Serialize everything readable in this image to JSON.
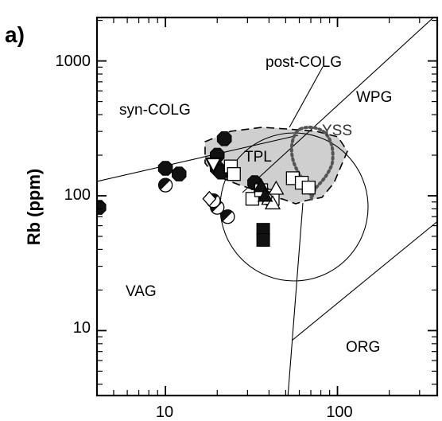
{
  "chart_data": {
    "type": "scatter",
    "panel_label": "a)",
    "xlabel": "",
    "ylabel": "Rb (ppm)",
    "xscale": "log",
    "yscale": "log",
    "xlim": [
      4,
      380
    ],
    "ylim": [
      3.3,
      2100
    ],
    "x_ticks": [
      10,
      100
    ],
    "y_ticks": [
      10,
      100,
      1000
    ],
    "grid": false,
    "regions": [
      "syn-COLG",
      "post-COLG",
      "WPG",
      "YSS",
      "TPL",
      "VAG",
      "ORG"
    ],
    "series": [
      {
        "marker": "filled-octagon",
        "points": [
          [
            4.1,
            82
          ],
          [
            10,
            160
          ],
          [
            12,
            145
          ],
          [
            22,
            265
          ],
          [
            20,
            200
          ],
          [
            20,
            160
          ],
          [
            21,
            150
          ],
          [
            33,
            125
          ],
          [
            36,
            108
          ]
        ]
      },
      {
        "marker": "half-filled-circle",
        "points": [
          [
            10,
            120
          ],
          [
            20,
            82
          ],
          [
            23,
            70
          ],
          [
            19,
            92
          ]
        ]
      },
      {
        "marker": "open-square",
        "points": [
          [
            24,
            165
          ],
          [
            25,
            145
          ],
          [
            32,
            95
          ],
          [
            36,
            110
          ],
          [
            40,
            100
          ],
          [
            42,
            95
          ],
          [
            55,
            135
          ],
          [
            62,
            125
          ],
          [
            68,
            115
          ]
        ]
      },
      {
        "marker": "filled-square",
        "points": [
          [
            37,
            56
          ],
          [
            37,
            47
          ]
        ]
      },
      {
        "marker": "open-triangle",
        "points": [
          [
            40,
            95
          ],
          [
            42,
            88
          ],
          [
            44,
            113
          ]
        ]
      },
      {
        "marker": "filled-triangle",
        "points": [
          [
            36,
            118
          ],
          [
            38,
            100
          ]
        ]
      },
      {
        "marker": "open-diamond",
        "points": [
          [
            18,
            95
          ]
        ]
      },
      {
        "marker": "inverted-triangle",
        "points": [
          [
            19,
            170
          ]
        ]
      }
    ]
  }
}
